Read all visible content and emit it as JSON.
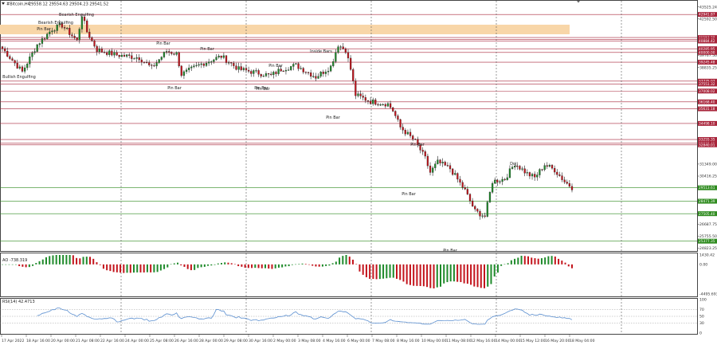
{
  "chart_header": {
    "symbol": "#Bitcoin,H4",
    "ohlc": "29558.12 29554.63 29504.23 29541.52"
  },
  "colors": {
    "bull": "#1e8a2a",
    "bear": "#c3141c",
    "resistance_line": "#a8243a",
    "support_line": "#2e8b1e",
    "zone": "#f8d6a8",
    "indicator_line": "#5b8fd0",
    "grid": "#555555"
  },
  "icons": {
    "menu": "triangle-down-icon",
    "resize": "resize-handle-icon"
  },
  "chart_data": {
    "type": "candlestick",
    "main_axis": {
      "range": [
        24800,
        44000
      ],
      "tick_labels": [
        "43525.24",
        "42592.50",
        "39767.50",
        "38835.25",
        "33241.75",
        "31349.00",
        "30416.25",
        "29484.50",
        "26687.75",
        "25755.50",
        "24823.25"
      ]
    },
    "price_levels": [
      {
        "label": "42941.87",
        "role": "resistance"
      },
      {
        "label": "41153.22",
        "role": "zone"
      },
      {
        "label": "41010.45",
        "role": "zone"
      },
      {
        "label": "40884.42",
        "role": "zone"
      },
      {
        "label": "40285.95",
        "role": "resistance"
      },
      {
        "label": "40000.00",
        "role": "resistance"
      },
      {
        "label": "39245.48",
        "role": "resistance"
      },
      {
        "label": "37775.07",
        "role": "resistance"
      },
      {
        "label": "37551.32",
        "role": "resistance"
      },
      {
        "label": "37008.02",
        "role": "resistance"
      },
      {
        "label": "36168.40",
        "role": "resistance"
      },
      {
        "label": "35631.18",
        "role": "resistance"
      },
      {
        "label": "34498.10",
        "role": "resistance"
      },
      {
        "label": "33255.35",
        "role": "resistance"
      },
      {
        "label": "32960.41",
        "role": "resistance"
      },
      {
        "label": "32840.01",
        "role": "resistance"
      },
      {
        "label": "29513.61",
        "role": "support"
      },
      {
        "label": "28471.39",
        "role": "support"
      },
      {
        "label": "27505.40",
        "role": "support"
      },
      {
        "label": "25377.35",
        "role": "support"
      }
    ],
    "time_labels": [
      "17 Apr 2022",
      "18 Apr 16:00",
      "20 Apr 00:00",
      "21 Apr 08:00",
      "22 Apr 16:00",
      "24 Apr 00:00",
      "25 Apr 08:00",
      "26 Apr 16:00",
      "28 Apr 00:00",
      "29 Apr 08:00",
      "30 Apr 16:00",
      "2 May 00:00",
      "3 May 08:00",
      "4 May 16:00",
      "6 May 00:00",
      "7 May 08:00",
      "8 May 16:00",
      "10 May 00:00",
      "11 May 08:00",
      "12 May 16:00",
      "14 May 00:00",
      "15 May 12:00",
      "16 May 20:00",
      "18 May 04:00"
    ],
    "annotations": [
      "Bearish Engulfing",
      "Pin Bar",
      "Bearish Engulfing",
      "Bullish Engulfing",
      "Pin Bar",
      "Pin Bar",
      "Pin Bar",
      "Pin Bar",
      "Pin Bar",
      "Pin Bar",
      "Inside Bars",
      "Pin Bar",
      "Pin Bar",
      "Pin Bar",
      "Doji",
      "Pin Bar"
    ],
    "ao": {
      "title": "AO -738.319",
      "tick_labels": [
        "1430.42",
        "0.00",
        "-4495.693"
      ],
      "range": [
        -4495.693,
        1430.42
      ]
    },
    "rsi": {
      "title": "RSI(14) 42.4713",
      "tick_labels": [
        "100",
        "70",
        "50",
        "30",
        "0"
      ],
      "range": [
        0,
        100
      ]
    }
  }
}
